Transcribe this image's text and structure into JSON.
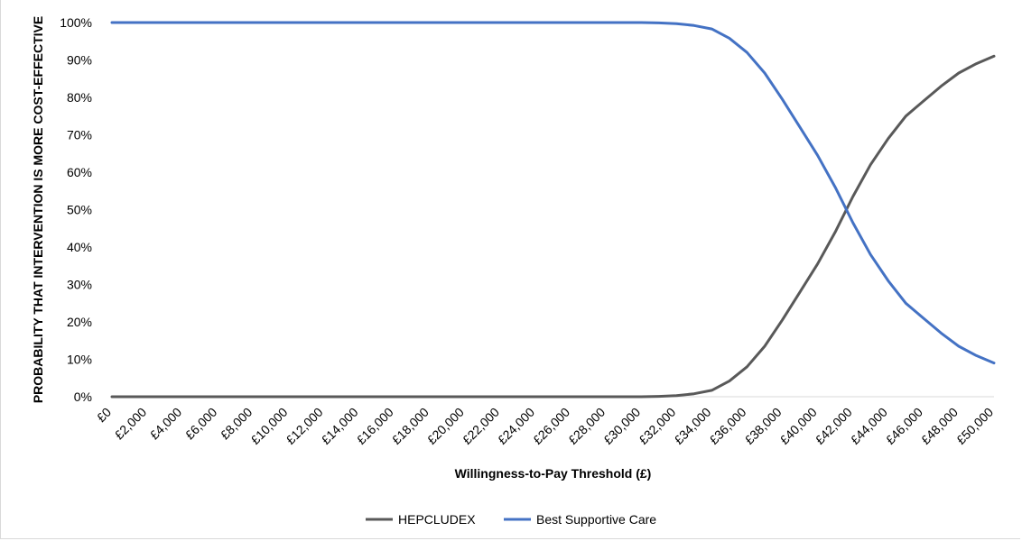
{
  "chart_data": {
    "type": "line",
    "xlabel": "Willingness-to-Pay Threshold (£)",
    "ylabel": "PROBABILITY THAT INTERVENTION IS MORE COST-EFFECTIVE",
    "xlim": [
      0,
      50000
    ],
    "ylim": [
      0,
      100
    ],
    "x_ticks": [
      0,
      2000,
      4000,
      6000,
      8000,
      10000,
      12000,
      14000,
      16000,
      18000,
      20000,
      22000,
      24000,
      26000,
      28000,
      30000,
      32000,
      34000,
      36000,
      38000,
      40000,
      42000,
      44000,
      46000,
      48000,
      50000
    ],
    "x_tick_labels": [
      "£0",
      "£2,000",
      "£4,000",
      "£6,000",
      "£8,000",
      "£10,000",
      "£12,000",
      "£14,000",
      "£16,000",
      "£18,000",
      "£20,000",
      "£22,000",
      "£24,000",
      "£26,000",
      "£28,000",
      "£30,000",
      "£32,000",
      "£34,000",
      "£36,000",
      "£38,000",
      "£40,000",
      "£42,000",
      "£44,000",
      "£46,000",
      "£48,000",
      "£50,000"
    ],
    "y_ticks": [
      0,
      10,
      20,
      30,
      40,
      50,
      60,
      70,
      80,
      90,
      100
    ],
    "y_tick_labels": [
      "0%",
      "10%",
      "20%",
      "30%",
      "40%",
      "50%",
      "60%",
      "70%",
      "80%",
      "90%",
      "100%"
    ],
    "grid": false,
    "legend_position": "bottom",
    "series": [
      {
        "name": "HEPCLUDEX",
        "color": "#595959",
        "x": [
          0,
          30000,
          31000,
          32000,
          33000,
          34000,
          35000,
          36000,
          37000,
          38000,
          39000,
          40000,
          41000,
          42000,
          43000,
          44000,
          45000,
          46000,
          47000,
          48000,
          49000,
          50000
        ],
        "y": [
          0,
          0,
          0.1,
          0.3,
          0.8,
          1.7,
          4.2,
          8,
          13.5,
          20.5,
          28,
          35.5,
          44,
          53.5,
          62,
          69,
          75,
          79,
          83,
          86.5,
          89,
          91
        ]
      },
      {
        "name": "Best Supportive Care",
        "color": "#4472c4",
        "x": [
          0,
          30000,
          31000,
          32000,
          33000,
          34000,
          35000,
          36000,
          37000,
          38000,
          39000,
          40000,
          41000,
          42000,
          43000,
          44000,
          45000,
          46000,
          47000,
          48000,
          49000,
          50000
        ],
        "y": [
          100,
          100,
          99.9,
          99.7,
          99.2,
          98.3,
          95.8,
          92,
          86.5,
          79.5,
          72,
          64.5,
          56,
          46.5,
          38,
          31,
          25,
          21,
          17,
          13.5,
          11,
          9
        ]
      }
    ]
  }
}
